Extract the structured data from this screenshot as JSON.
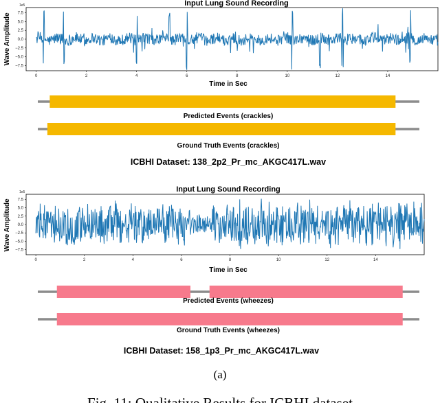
{
  "subfigure_label": "(a)",
  "caption": "Fig. 11: Qualitative Results for ICBHI dataset",
  "colors": {
    "waveform": "#1f77b4",
    "crackles_bar": "#f5b800",
    "wheezes_bar": "#f77a8c",
    "timeline": "#8c8c8c"
  },
  "chart_data": [
    {
      "type": "line",
      "title": "Input Lung Sound Recording",
      "xlabel": "Time in Sec",
      "ylabel": "Wave Amplitude",
      "y_exponent": "1e5",
      "xlim": [
        -0.4,
        16.0
      ],
      "ylim": [
        -9,
        9
      ],
      "x_ticks": [
        0,
        2,
        4,
        6,
        8,
        10,
        12,
        14
      ],
      "y_ticks": [
        7.5,
        5.0,
        2.5,
        0.0,
        -2.5,
        -5.0,
        -7.5
      ],
      "y_tick_labels": [
        "7.5",
        "5.0",
        "2.5",
        "0.0",
        "−2.5",
        "−5.0",
        "−7.5"
      ],
      "grid": false,
      "duration_sec": 16,
      "series_color": "#1f77b4",
      "amplitude_profile": "low-amplitude noise (about ±2.5e5) with sharp spikes reaching about ±9e5 near 0.3s, 1.1s, 4.0s, 5.3s, 6.0s, 10.2s, 11.3s, 12.2s, 14.9s"
    },
    {
      "type": "line",
      "title": "Input Lung Sound Recording",
      "xlabel": "Time in Sec",
      "ylabel": "Wave Amplitude",
      "y_exponent": "1e5",
      "xlim": [
        -0.4,
        16.0
      ],
      "ylim": [
        -9,
        9
      ],
      "x_ticks": [
        0,
        2,
        4,
        6,
        8,
        10,
        12,
        14
      ],
      "y_ticks": [
        7.5,
        5.0,
        2.5,
        0.0,
        -2.5,
        -5.0,
        -7.5
      ],
      "y_tick_labels": [
        "7.5",
        "5.0",
        "2.5",
        "0.0",
        "−2.5",
        "−5.0",
        "−7.5"
      ],
      "grid": false,
      "duration_sec": 16,
      "series_color": "#1f77b4",
      "amplitude_profile": "dense oscillation with amplitude mostly about ±5e5 to ±7.5e5 throughout, slightly quieter between 6.4s and 7.2s"
    }
  ],
  "panels": [
    {
      "events": [
        {
          "label": "Predicted Events (crackles)",
          "class": "crackles",
          "segments": [
            [
              0.5,
              15.0
            ]
          ]
        },
        {
          "label": "Ground Truth Events (crackles)",
          "class": "crackles",
          "segments": [
            [
              0.4,
              15.0
            ]
          ]
        }
      ],
      "dataset_label": "ICBHI Dataset: 138_2p2_Pr_mc_AKGC417L.wav"
    },
    {
      "events": [
        {
          "label": "Predicted Events (wheezes)",
          "class": "wheezes",
          "segments": [
            [
              0.8,
              6.4
            ],
            [
              7.2,
              15.3
            ]
          ]
        },
        {
          "label": "Ground Truth Events (wheezes)",
          "class": "wheezes",
          "segments": [
            [
              0.8,
              15.3
            ]
          ]
        }
      ],
      "dataset_label": "ICBHI Dataset: 158_1p3_Pr_mc_AKGC417L.wav"
    }
  ]
}
